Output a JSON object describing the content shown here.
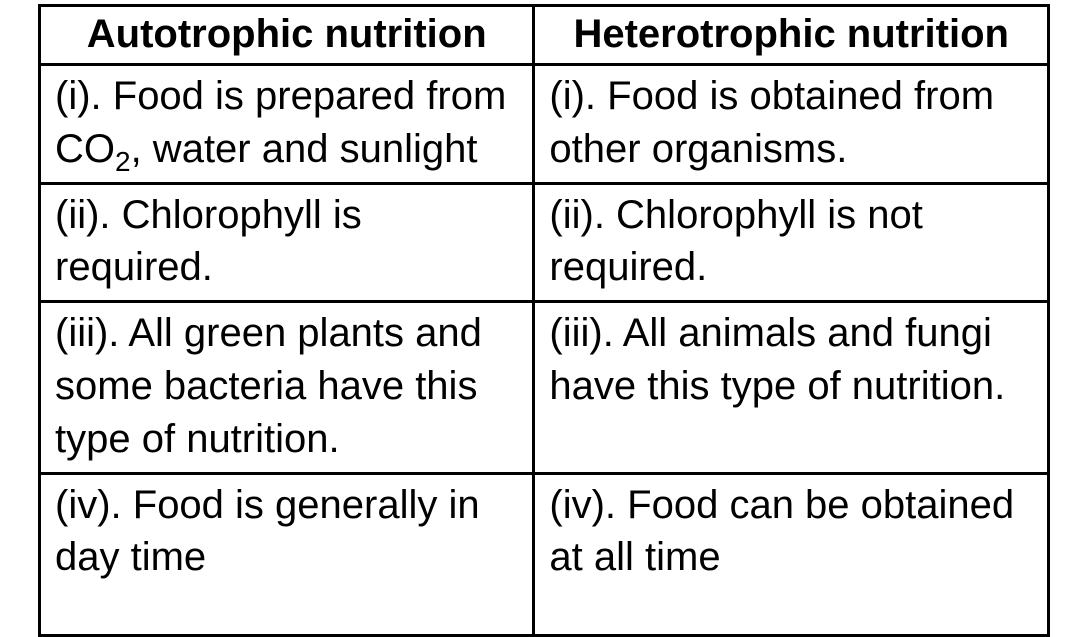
{
  "table": {
    "type": "table",
    "columns": [
      {
        "header": "Autotrophic nutrition",
        "width": "49%"
      },
      {
        "header": "Heterotrophic nutrition",
        "width": "51%"
      }
    ],
    "rows": [
      {
        "left_prefix": "(i). Food is prepared from CO",
        "left_sub": "2",
        "left_suffix": ", water and sunlight",
        "right": "(i). Food is obtained from other organisms."
      },
      {
        "left": "(ii). Chlorophyll is required.",
        "right": "(ii). Chlorophyll is not required."
      },
      {
        "left": "(iii). All green plants and some bacteria have this type of nutrition.",
        "right": "(iii).  All animals and fungi have this type of nutrition."
      },
      {
        "left": "(iv). Food is generally in day time",
        "right": "(iv).  Food can be obtained at all time"
      }
    ],
    "border_color": "#000000",
    "background_color": "#ffffff",
    "header_fontsize": 40,
    "cell_fontsize": 40,
    "font_family": "Arial"
  }
}
